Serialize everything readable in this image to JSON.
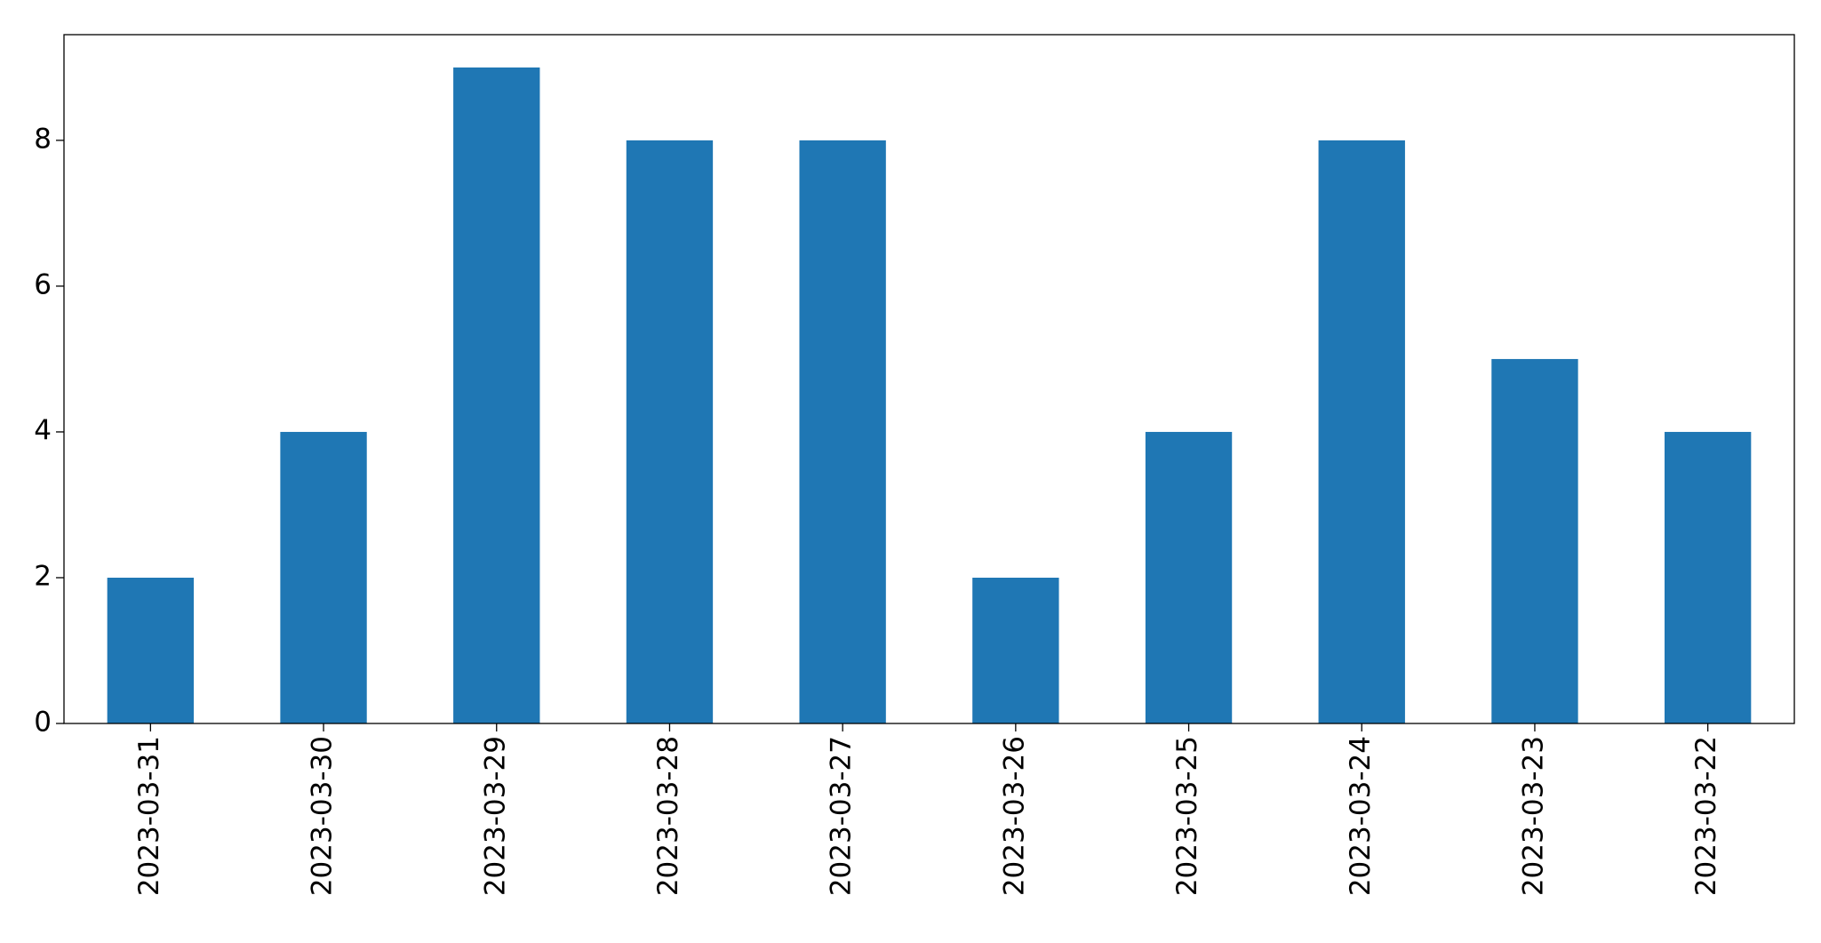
{
  "chart_data": {
    "type": "bar",
    "categories": [
      "2023-03-31",
      "2023-03-30",
      "2023-03-29",
      "2023-03-28",
      "2023-03-27",
      "2023-03-26",
      "2023-03-25",
      "2023-03-24",
      "2023-03-23",
      "2023-03-22"
    ],
    "values": [
      2,
      4,
      9,
      8,
      8,
      2,
      4,
      8,
      5,
      4
    ],
    "color": "#1f77b4",
    "ylim": [
      0,
      9.45
    ],
    "yticks": [
      0,
      2,
      4,
      6,
      8
    ],
    "grid": false
  }
}
